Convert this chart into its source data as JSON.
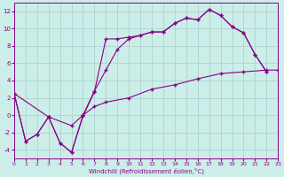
{
  "xlabel": "Windchill (Refroidissement éolien,°C)",
  "bg_color": "#cceee8",
  "line_color": "#880088",
  "grid_color": "#aacccc",
  "xlim": [
    0,
    23
  ],
  "ylim": [
    -5,
    13
  ],
  "yticks": [
    -4,
    -2,
    0,
    2,
    4,
    6,
    8,
    10,
    12
  ],
  "xticks": [
    0,
    1,
    2,
    3,
    4,
    5,
    6,
    7,
    8,
    9,
    10,
    11,
    12,
    13,
    14,
    15,
    16,
    17,
    18,
    19,
    20,
    21,
    22,
    23
  ],
  "curve1_x": [
    0,
    1,
    2,
    3,
    4,
    5,
    6,
    7,
    8,
    9,
    10,
    11,
    12,
    13,
    14,
    15,
    16,
    17,
    18,
    19,
    20,
    21,
    22
  ],
  "curve1_y": [
    2.5,
    -3.0,
    -2.2,
    -0.2,
    -3.2,
    -4.3,
    -0.1,
    2.7,
    8.8,
    8.8,
    9.0,
    9.2,
    9.6,
    9.6,
    10.6,
    11.2,
    11.0,
    12.2,
    11.5,
    10.2,
    9.5,
    7.0,
    5.0
  ],
  "curve2_x": [
    0,
    1,
    2,
    3,
    4,
    5,
    6,
    7,
    8,
    9,
    10,
    11,
    12,
    13,
    14,
    15,
    16,
    17,
    18,
    19,
    20,
    21,
    22
  ],
  "curve2_y": [
    2.5,
    -3.0,
    -2.2,
    -0.2,
    -3.2,
    -4.3,
    0.0,
    2.8,
    5.2,
    7.6,
    8.8,
    9.2,
    9.6,
    9.6,
    10.6,
    11.2,
    11.0,
    12.2,
    11.5,
    10.2,
    9.5,
    7.0,
    5.0
  ],
  "curve3_x": [
    0,
    3,
    5,
    6,
    7,
    8,
    10,
    12,
    14,
    16,
    18,
    20,
    22,
    23
  ],
  "curve3_y": [
    2.5,
    -0.2,
    -1.2,
    0.0,
    1.0,
    1.5,
    2.0,
    3.0,
    3.5,
    4.2,
    4.8,
    5.0,
    5.2,
    5.2
  ]
}
